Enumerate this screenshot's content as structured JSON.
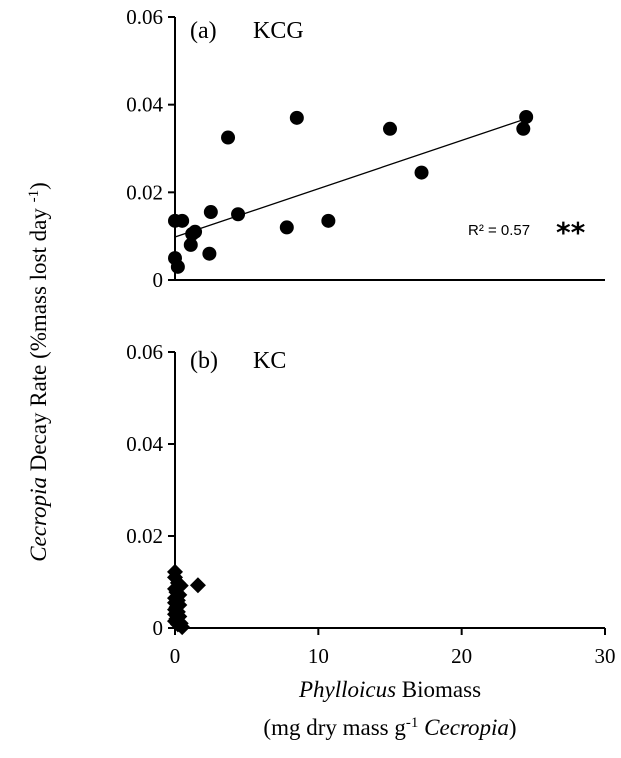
{
  "chart_data": [
    {
      "type": "scatter",
      "panel_label": "(a)",
      "site": "KCG",
      "ylim": [
        0,
        0.06
      ],
      "xlim": [
        0,
        30
      ],
      "yticks": [
        "0",
        "0.02",
        "0.04",
        "0.06"
      ],
      "series": [
        {
          "marker": "circle",
          "points": [
            [
              0,
              0.005
            ],
            [
              0.2,
              0.003
            ],
            [
              0,
              0.0135
            ],
            [
              0.5,
              0.0135
            ],
            [
              1.1,
              0.008
            ],
            [
              1.2,
              0.0105
            ],
            [
              1.4,
              0.011
            ],
            [
              2.4,
              0.006
            ],
            [
              2.5,
              0.0155
            ],
            [
              3.7,
              0.0325
            ],
            [
              4.4,
              0.015
            ],
            [
              7.8,
              0.012
            ],
            [
              8.5,
              0.037
            ],
            [
              10.7,
              0.0135
            ],
            [
              15.0,
              0.0345
            ],
            [
              17.2,
              0.0245
            ],
            [
              24.3,
              0.0345
            ],
            [
              24.5,
              0.0372
            ]
          ]
        }
      ],
      "trendline": {
        "x": [
          0,
          24.5
        ],
        "y": [
          0.0098,
          0.0368
        ]
      },
      "r2_text": "R² = 0.57",
      "significance": "**"
    },
    {
      "type": "scatter",
      "panel_label": "(b)",
      "site": "KC",
      "ylim": [
        0,
        0.06
      ],
      "xlim": [
        0,
        30
      ],
      "yticks": [
        "0",
        "0.02",
        "0.04",
        "0.06"
      ],
      "xticks": [
        "0",
        "10",
        "20",
        "30"
      ],
      "series": [
        {
          "marker": "diamond",
          "points": [
            [
              0,
              0.0122
            ],
            [
              0,
              0.011
            ],
            [
              0.2,
              0.0098
            ],
            [
              0.4,
              0.0092
            ],
            [
              0,
              0.0085
            ],
            [
              0.1,
              0.0078
            ],
            [
              0.3,
              0.0072
            ],
            [
              0,
              0.0065
            ],
            [
              0.2,
              0.006
            ],
            [
              0,
              0.0055
            ],
            [
              0.3,
              0.005
            ],
            [
              0.1,
              0.0045
            ],
            [
              0,
              0.004
            ],
            [
              0.2,
              0.0035
            ],
            [
              0,
              0.003
            ],
            [
              0.3,
              0.0025
            ],
            [
              0.1,
              0.002
            ],
            [
              0,
              0.0015
            ],
            [
              0.4,
              0.001
            ],
            [
              0.2,
              0.0008
            ],
            [
              0.5,
              0.0002
            ],
            [
              1.6,
              0.0093
            ]
          ]
        }
      ]
    }
  ],
  "ylabel": {
    "italic": "Cecropia",
    "rest": " Decay  Rate (%mass lost  day ",
    "sup": "-1",
    "close": ")"
  },
  "xlabel_line1": {
    "italic": "Phylloicus",
    "rest": " Biomass"
  },
  "xlabel_line2": {
    "open": "(mg dry mass  g",
    "sup": "-1",
    "italic": " Cecropia",
    "close": ")"
  }
}
